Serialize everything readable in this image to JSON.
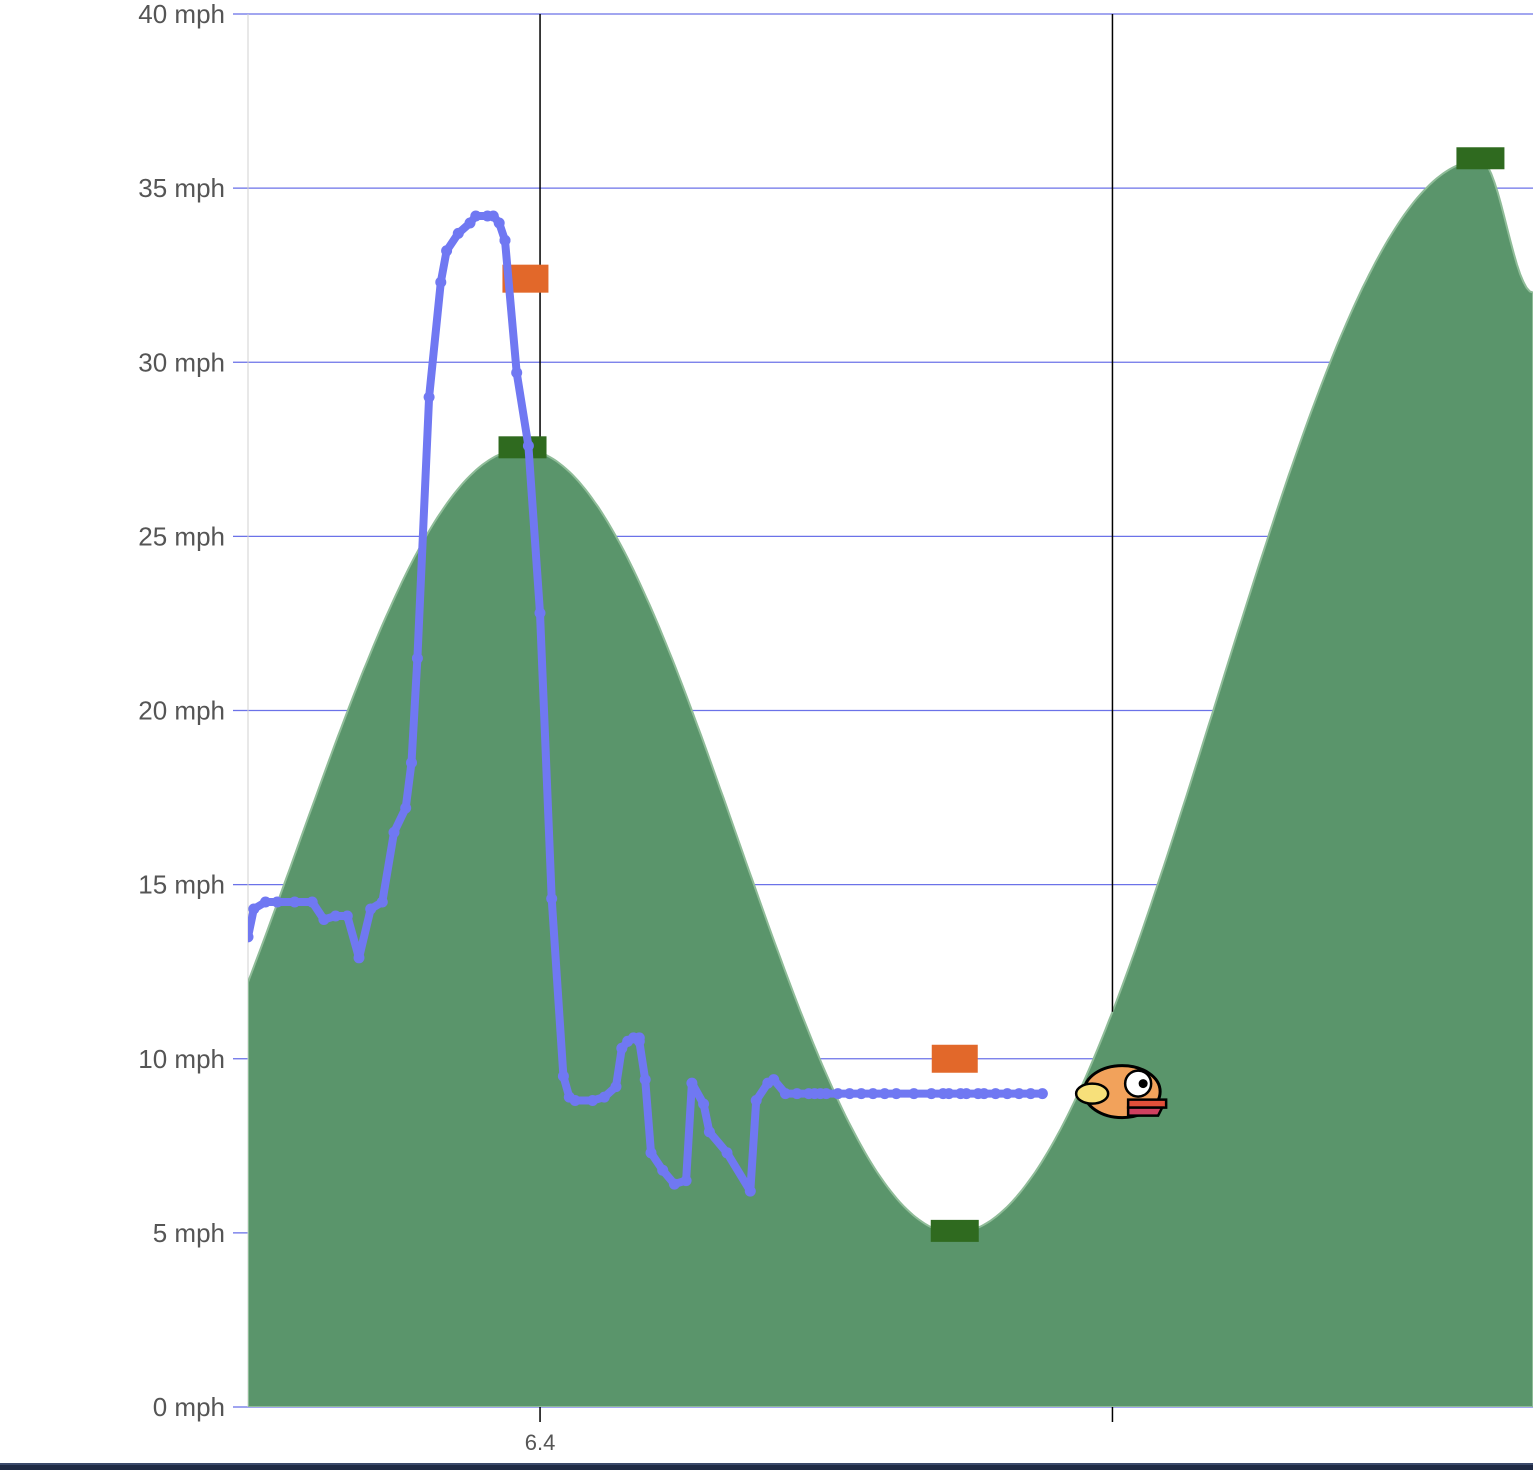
{
  "chart_data": {
    "type": "area",
    "y_unit": "mph",
    "ylim": [
      0,
      40
    ],
    "yticks": [
      0,
      5,
      10,
      15,
      20,
      25,
      30,
      35,
      40
    ],
    "ytick_labels": [
      "0 mph",
      "5 mph",
      "10 mph",
      "15 mph",
      "20 mph",
      "25 mph",
      "30 mph",
      "35 mph",
      "40 mph"
    ],
    "xlim": [
      5.9,
      8.1
    ],
    "xticks": [
      6.4,
      7.38
    ],
    "xtick_labels": [
      "6.4",
      ""
    ],
    "grid": true,
    "colors": {
      "terrain_fill": "#5a956b",
      "terrain_edge": "#8fbc98",
      "player_line": "#7078f2",
      "gridline": "#6b72e8",
      "target_marker": "#e2682a",
      "terrain_marker": "#2f6a1f",
      "vline": "#000000"
    },
    "terrain": {
      "x": [
        5.9,
        6.37,
        7.11,
        8.01,
        8.1
      ],
      "y": [
        12.2,
        27.5,
        5.0,
        35.8,
        32.0
      ]
    },
    "terrain_markers": [
      {
        "x": 6.37,
        "y": 27.5
      },
      {
        "x": 7.11,
        "y": 5.0
      },
      {
        "x": 8.01,
        "y": 35.8
      }
    ],
    "target_markers": [
      {
        "x": 6.375,
        "y": 32.4
      },
      {
        "x": 7.11,
        "y": 10.0
      }
    ],
    "player_speed": {
      "x": [
        5.9,
        5.91,
        5.93,
        5.95,
        5.98,
        6.01,
        6.03,
        6.05,
        6.07,
        6.09,
        6.11,
        6.13,
        6.15,
        6.17,
        6.18,
        6.19,
        6.21,
        6.23,
        6.24,
        6.26,
        6.28,
        6.29,
        6.31,
        6.32,
        6.33,
        6.34,
        6.34,
        6.36,
        6.38,
        6.4,
        6.42,
        6.44,
        6.45,
        6.46,
        6.49,
        6.51,
        6.53,
        6.54,
        6.55,
        6.56,
        6.57,
        6.57,
        6.58,
        6.59,
        6.61,
        6.63,
        6.65,
        6.66,
        6.68,
        6.69,
        6.72,
        6.76,
        6.77,
        6.79,
        6.8,
        6.82,
        6.84,
        6.86,
        6.87,
        6.88,
        6.89,
        6.91,
        6.93,
        6.95,
        6.97,
        6.99,
        7.01,
        7.04,
        7.07,
        7.09,
        7.1,
        7.12,
        7.13,
        7.15,
        7.16,
        7.18,
        7.2,
        7.22,
        7.24,
        7.26,
        7.28,
        7.3
      ],
      "y": [
        13.5,
        14.3,
        14.5,
        14.5,
        14.5,
        14.5,
        14.0,
        14.1,
        14.1,
        12.9,
        14.3,
        14.5,
        16.5,
        17.2,
        18.5,
        21.5,
        29.0,
        32.3,
        33.2,
        33.7,
        34.0,
        34.2,
        34.2,
        34.2,
        34.0,
        33.5,
        33.5,
        29.7,
        27.6,
        22.8,
        14.6,
        9.5,
        8.9,
        8.8,
        8.8,
        8.9,
        9.2,
        10.3,
        10.5,
        10.6,
        10.6,
        10.5,
        9.4,
        7.3,
        6.8,
        6.4,
        6.5,
        9.3,
        8.7,
        7.9,
        7.3,
        6.2,
        8.8,
        9.3,
        9.4,
        9.0,
        9.0,
        9.0,
        9.0,
        9.0,
        9.0,
        9.0,
        9.0,
        9.0,
        9.0,
        9.0,
        9.0,
        9.0,
        9.0,
        9.0,
        9.0,
        9.0,
        9.0,
        9.0,
        9.0,
        9.0,
        9.0,
        9.0,
        9.0,
        9.0,
        9.0,
        9.0
      ]
    },
    "player_end_x": 7.273,
    "bird": {
      "x": 7.4,
      "y": 9.0,
      "icon": "flappy-bird-icon"
    },
    "vertical_lines_x": [
      6.4,
      7.38
    ]
  }
}
